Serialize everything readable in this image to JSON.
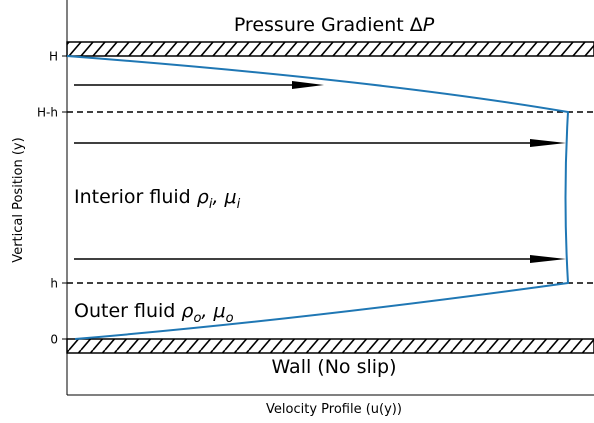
{
  "axes": {
    "x_label": "Velocity Profile (u(y))",
    "y_label": "Vertical Position (y)",
    "y_ticks": [
      "H",
      "H-h",
      "h",
      "0"
    ]
  },
  "annotations": {
    "top": [
      "Pressure Gradient Δ",
      "P"
    ],
    "interior": [
      "Interior fluid ",
      "ρ",
      "i",
      ", μ",
      "i"
    ],
    "outer": [
      "Outer fluid ",
      "ρ",
      "o",
      ", μ",
      "o"
    ],
    "bottom": "Wall (No slip)"
  }
}
